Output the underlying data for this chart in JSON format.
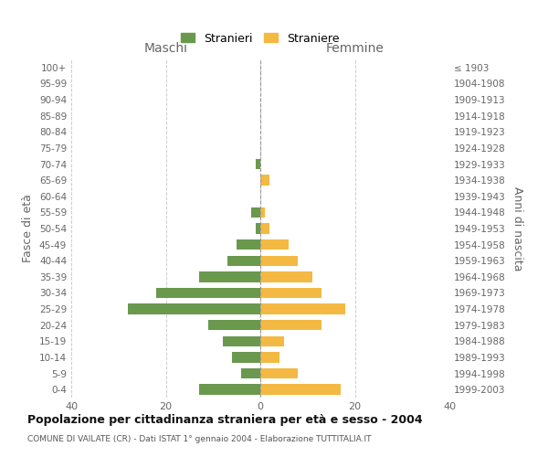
{
  "age_groups": [
    "0-4",
    "5-9",
    "10-14",
    "15-19",
    "20-24",
    "25-29",
    "30-34",
    "35-39",
    "40-44",
    "45-49",
    "50-54",
    "55-59",
    "60-64",
    "65-69",
    "70-74",
    "75-79",
    "80-84",
    "85-89",
    "90-94",
    "95-99",
    "100+"
  ],
  "birth_years": [
    "1999-2003",
    "1994-1998",
    "1989-1993",
    "1984-1988",
    "1979-1983",
    "1974-1978",
    "1969-1973",
    "1964-1968",
    "1959-1963",
    "1954-1958",
    "1949-1953",
    "1944-1948",
    "1939-1943",
    "1934-1938",
    "1929-1933",
    "1924-1928",
    "1919-1923",
    "1914-1918",
    "1909-1913",
    "1904-1908",
    "≤ 1903"
  ],
  "maschi": [
    13,
    4,
    6,
    8,
    11,
    28,
    22,
    13,
    7,
    5,
    1,
    2,
    0,
    0,
    1,
    0,
    0,
    0,
    0,
    0,
    0
  ],
  "femmine": [
    17,
    8,
    4,
    5,
    13,
    18,
    13,
    11,
    8,
    6,
    2,
    1,
    0,
    2,
    0,
    0,
    0,
    0,
    0,
    0,
    0
  ],
  "color_maschi": "#6a994e",
  "color_femmine": "#f4b942",
  "title": "Popolazione per cittadinanza straniera per età e sesso - 2004",
  "subtitle": "COMUNE DI VAILATE (CR) - Dati ISTAT 1° gennaio 2004 - Elaborazione TUTTITALIA.IT",
  "xlabel_left": "Maschi",
  "xlabel_right": "Femmine",
  "ylabel_left": "Fasce di età",
  "ylabel_right": "Anni di nascita",
  "xlim": 40,
  "legend_stranieri": "Stranieri",
  "legend_straniere": "Straniere",
  "background_color": "#ffffff",
  "grid_color": "#cccccc"
}
